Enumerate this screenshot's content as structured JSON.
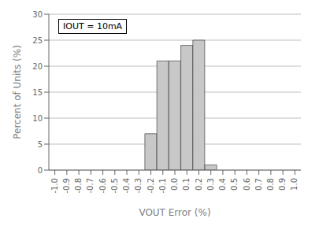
{
  "chart_data": {
    "type": "bar",
    "x": [
      -0.2,
      -0.1,
      0.0,
      0.1,
      0.2,
      0.3
    ],
    "values": [
      7,
      21,
      21,
      24,
      25,
      1
    ],
    "color": "#c8c8c8",
    "xlabel": "VOUT Error (%)",
    "ylabel": "Percent of Units (%)",
    "annotations": [
      "IOUT = 10mA"
    ],
    "xlim": [
      -1.05,
      1.05
    ],
    "ylim": [
      0,
      30
    ],
    "xticks": [
      {
        "value": -1.0,
        "label": "-1.0"
      },
      -0.9,
      -0.8,
      -0.7,
      -0.6,
      -0.5,
      -0.4,
      -0.3,
      -0.2,
      -0.1,
      {
        "value": 0.0,
        "label": "0.0"
      },
      0.1,
      0.2,
      0.3,
      0.4,
      0.5,
      0.6,
      0.7,
      0.8,
      0.9,
      {
        "value": 1.0,
        "label": "1.0"
      }
    ],
    "yticks": [
      0,
      5,
      10,
      15,
      20,
      25,
      30
    ],
    "grid": true
  }
}
